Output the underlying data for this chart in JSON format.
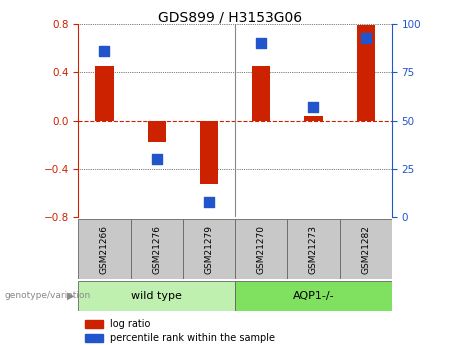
{
  "title": "GDS899 / H3153G06",
  "samples": [
    "GSM21266",
    "GSM21276",
    "GSM21279",
    "GSM21270",
    "GSM21273",
    "GSM21282"
  ],
  "log_ratio": [
    0.45,
    -0.18,
    -0.52,
    0.45,
    0.04,
    0.79
  ],
  "percentile_rank": [
    86,
    30,
    8,
    90,
    57,
    93
  ],
  "ylim_left": [
    -0.8,
    0.8
  ],
  "ylim_right": [
    0,
    100
  ],
  "yticks_left": [
    -0.8,
    -0.4,
    0.0,
    0.4,
    0.8
  ],
  "yticks_right": [
    0,
    25,
    50,
    75,
    100
  ],
  "bar_color": "#cc2200",
  "dot_color": "#2255cc",
  "zero_line_color": "#cc2200",
  "plot_bg_color": "#ffffff",
  "sample_box_color": "#c8c8c8",
  "group1_color": "#c0f0b0",
  "group2_color": "#80e060",
  "genotype_label": "genotype/variation",
  "group1_label": "wild type",
  "group2_label": "AQP1-/-",
  "legend_log_ratio": "log ratio",
  "legend_percentile": "percentile rank within the sample",
  "bar_width": 0.35,
  "dot_size": 45,
  "group_sep_index": 3
}
